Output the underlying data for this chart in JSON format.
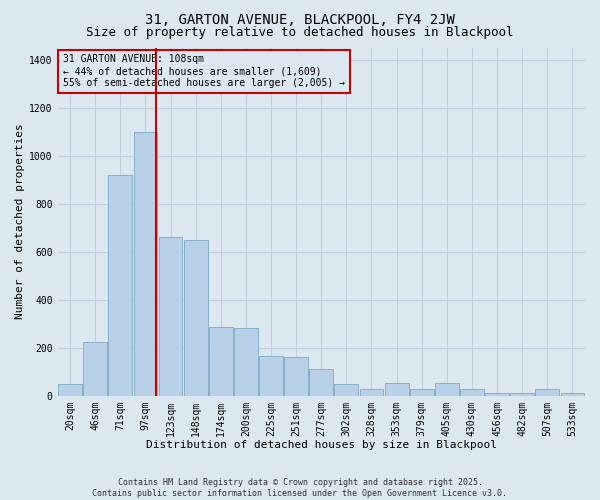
{
  "title": "31, GARTON AVENUE, BLACKPOOL, FY4 2JW",
  "subtitle": "Size of property relative to detached houses in Blackpool",
  "xlabel": "Distribution of detached houses by size in Blackpool",
  "ylabel": "Number of detached properties",
  "categories": [
    "20sqm",
    "46sqm",
    "71sqm",
    "97sqm",
    "123sqm",
    "148sqm",
    "174sqm",
    "200sqm",
    "225sqm",
    "251sqm",
    "277sqm",
    "302sqm",
    "328sqm",
    "353sqm",
    "379sqm",
    "405sqm",
    "430sqm",
    "456sqm",
    "482sqm",
    "507sqm",
    "533sqm"
  ],
  "values": [
    50,
    225,
    920,
    1100,
    660,
    650,
    285,
    280,
    165,
    160,
    110,
    50,
    30,
    55,
    30,
    55,
    30,
    10,
    10,
    30,
    10
  ],
  "bar_color": "#b8d0e8",
  "bar_edge_color": "#7aaac8",
  "grid_color": "#c0d0e0",
  "bg_color": "#dce8f0",
  "vline_color": "#cc0000",
  "vline_position": 3.42,
  "annotation_text": "31 GARTON AVENUE: 108sqm\n← 44% of detached houses are smaller (1,609)\n55% of semi-detached houses are larger (2,005) →",
  "annotation_box_color": "#cc0000",
  "footer_text": "Contains HM Land Registry data © Crown copyright and database right 2025.\nContains public sector information licensed under the Open Government Licence v3.0.",
  "ylim": [
    0,
    1450
  ],
  "yticks": [
    0,
    200,
    400,
    600,
    800,
    1000,
    1200,
    1400
  ],
  "title_fontsize": 10,
  "subtitle_fontsize": 9,
  "axis_label_fontsize": 8,
  "tick_fontsize": 7,
  "footer_fontsize": 6,
  "annotation_fontsize": 7
}
